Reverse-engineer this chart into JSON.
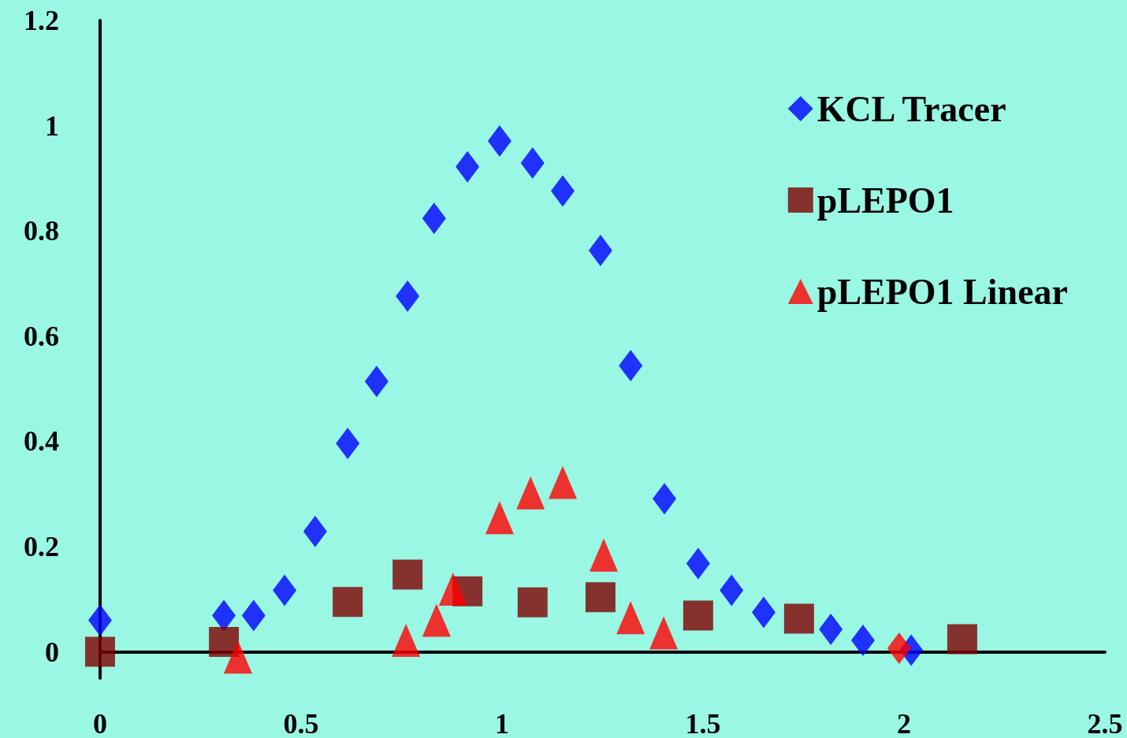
{
  "chart_data": {
    "type": "scatter",
    "xlim": [
      0,
      2.5
    ],
    "xticks": [
      0,
      0.5,
      1,
      1.5,
      2,
      2.5
    ],
    "ylim": [
      -0.05,
      1.2
    ],
    "yticks": [
      0,
      0.2,
      0.4,
      0.6,
      0.8,
      1,
      1.2
    ],
    "grid": false,
    "legend": "top right",
    "series": [
      {
        "name": "KCL Tracer",
        "color": "#0000ff",
        "marker": "diamond",
        "x": [
          0,
          0.308,
          0.382,
          0.459,
          0.535,
          0.616,
          0.688,
          0.765,
          0.831,
          0.914,
          0.994,
          1.076,
          1.151,
          1.245,
          1.32,
          1.404,
          1.488,
          1.571,
          1.651,
          1.818,
          1.898,
          2.018
        ],
        "values": [
          0.06,
          0.069,
          0.069,
          0.117,
          0.229,
          0.396,
          0.514,
          0.676,
          0.824,
          0.922,
          0.971,
          0.929,
          0.876,
          0.763,
          0.544,
          0.291,
          0.168,
          0.117,
          0.075,
          0.043,
          0.022,
          0.003
        ]
      },
      {
        "name": "pLEPO1",
        "color": "#800000",
        "marker": "square",
        "x": [
          0,
          0.308,
          0.616,
          0.765,
          0.914,
          1.076,
          1.245,
          1.488,
          1.739,
          2.145
        ],
        "values": [
          0,
          0.019,
          0.095,
          0.147,
          0.115,
          0.094,
          0.104,
          0.069,
          0.063,
          0.024
        ]
      },
      {
        "name": "pLEPO1 Linear",
        "color": "#ff0000",
        "marker": "triangle",
        "x": [
          0.343,
          0.761,
          0.837,
          0.878,
          0.994,
          1.071,
          1.151,
          1.253,
          1.32,
          1.402
        ],
        "values": [
          -0.01,
          0.022,
          0.06,
          0.119,
          0.255,
          0.302,
          0.322,
          0.184,
          0.065,
          0.036
        ]
      },
      {
        "color": "#ff0000",
        "marker": "diamond",
        "x": [
          1.988
        ],
        "values": [
          0.007
        ]
      }
    ]
  }
}
